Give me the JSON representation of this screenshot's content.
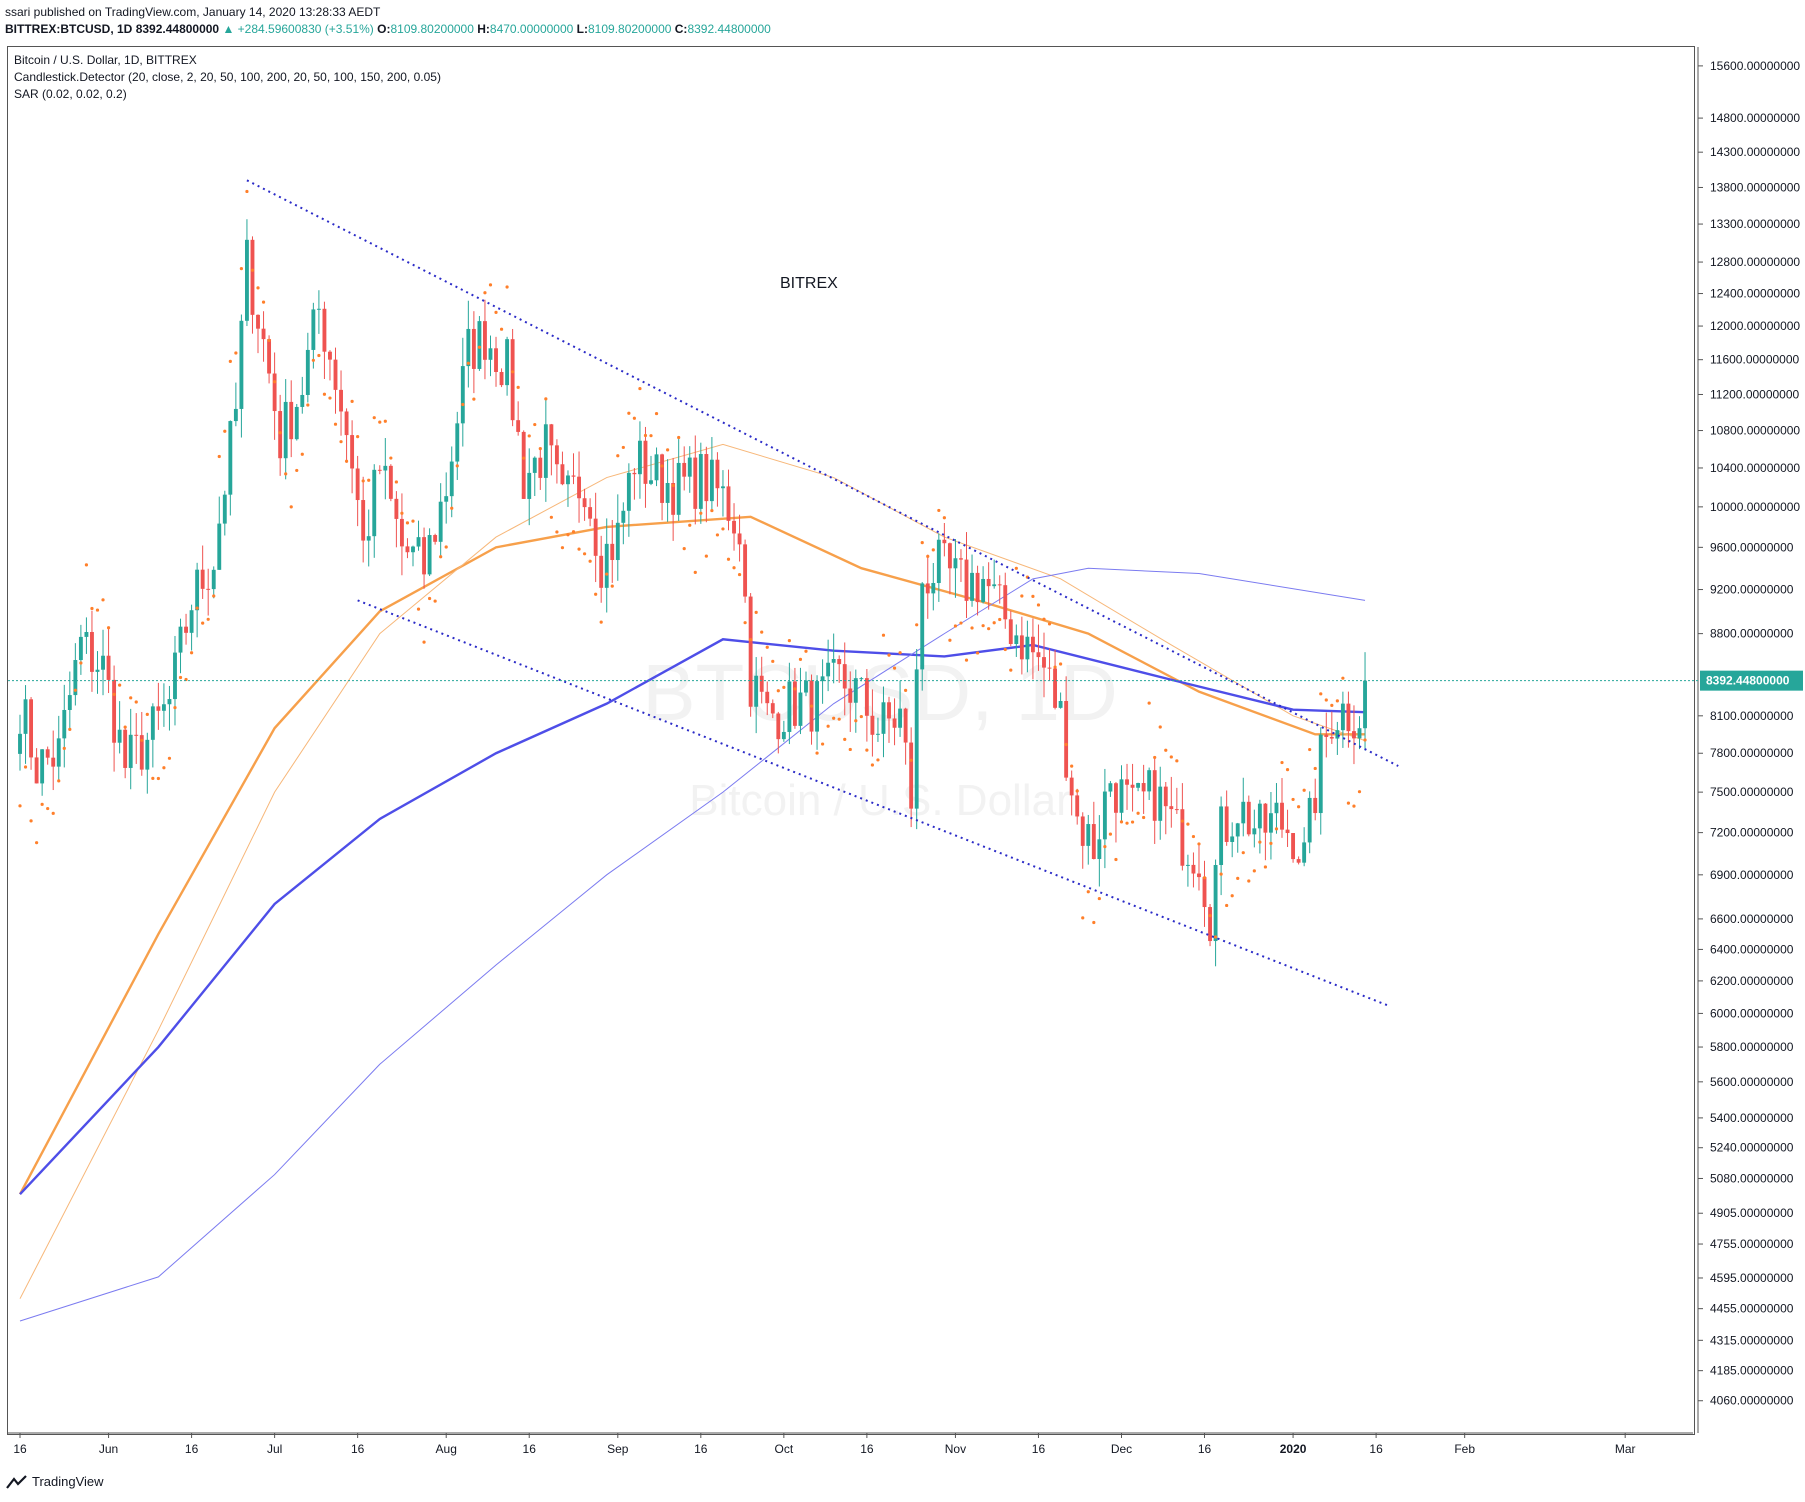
{
  "header": {
    "line1": "ssari published on TradingView.com, January 14, 2020 13:28:33 AEDT",
    "symbol": "BITTREX:BTCUSD, 1D",
    "value_price": "8392.44800000",
    "change": "▲ +284.59600830 (+3.51%)",
    "o_label": "O:",
    "o_value": "8109.80200000",
    "h_label": "H:",
    "h_value": "8470.00000000",
    "l_label": "L:",
    "l_value": "8109.80200000",
    "c_label": "C:",
    "c_value": "8392.44800000"
  },
  "legend": {
    "title": "Bitcoin / U.S. Dollar, 1D, BITTREX",
    "indicator1": "Candlestick.Detector (20, close, 2, 20, 50, 100, 200, 20, 50, 100, 150, 200, 0.05)",
    "indicator2": "SAR (0.02, 0.02, 0.2)"
  },
  "annotation": "BITREX",
  "watermark": {
    "line1": "BTCUSD, 1D",
    "line2": "Bitcoin / U.S. Dollar"
  },
  "footer": {
    "brand": "TradingView"
  },
  "colors": {
    "up": "#26a69a",
    "down": "#ef5350",
    "sar": "#ff7f2a",
    "ma_orange": "#f7a04b",
    "ma_orange_thin": "#f7b779",
    "ma_blue": "#4e4ee8",
    "ma_blue_thin": "#7b7bf0",
    "trendline": "#2b2bc7",
    "price_tag": "#26a69a"
  },
  "chart_data": {
    "type": "candlestick",
    "title": "Bitcoin / U.S. Dollar, 1D, BITTREX",
    "last_price": 8392.448,
    "last_price_label": "8392.44800000",
    "y_scale": "log",
    "ylim": [
      3930,
      15900
    ],
    "y_ticks": [
      {
        "v": 15600,
        "label": "15600.00000000"
      },
      {
        "v": 14800,
        "label": "14800.00000000"
      },
      {
        "v": 14300,
        "label": "14300.00000000"
      },
      {
        "v": 13800,
        "label": "13800.00000000"
      },
      {
        "v": 13300,
        "label": "13300.00000000"
      },
      {
        "v": 12800,
        "label": "12800.00000000"
      },
      {
        "v": 12400,
        "label": "12400.00000000"
      },
      {
        "v": 12000,
        "label": "12000.00000000"
      },
      {
        "v": 11600,
        "label": "11600.00000000"
      },
      {
        "v": 11200,
        "label": "11200.00000000"
      },
      {
        "v": 10800,
        "label": "10800.00000000"
      },
      {
        "v": 10400,
        "label": "10400.00000000"
      },
      {
        "v": 10000,
        "label": "10000.00000000"
      },
      {
        "v": 9600,
        "label": "9600.00000000"
      },
      {
        "v": 9200,
        "label": "9200.00000000"
      },
      {
        "v": 8800,
        "label": "8800.00000000"
      },
      {
        "v": 8100,
        "label": "8100.00000000"
      },
      {
        "v": 7800,
        "label": "7800.00000000"
      },
      {
        "v": 7500,
        "label": "7500.00000000"
      },
      {
        "v": 7200,
        "label": "7200.00000000"
      },
      {
        "v": 6900,
        "label": "6900.00000000"
      },
      {
        "v": 6600,
        "label": "6600.00000000"
      },
      {
        "v": 6400,
        "label": "6400.00000000"
      },
      {
        "v": 6200,
        "label": "6200.00000000"
      },
      {
        "v": 6000,
        "label": "6000.00000000"
      },
      {
        "v": 5800,
        "label": "5800.00000000"
      },
      {
        "v": 5600,
        "label": "5600.00000000"
      },
      {
        "v": 5400,
        "label": "5400.00000000"
      },
      {
        "v": 5240,
        "label": "5240.00000000"
      },
      {
        "v": 5080,
        "label": "5080.00000000"
      },
      {
        "v": 4905,
        "label": "4905.00000000"
      },
      {
        "v": 4755,
        "label": "4755.00000000"
      },
      {
        "v": 4595,
        "label": "4595.00000000"
      },
      {
        "v": 4455,
        "label": "4455.00000000"
      },
      {
        "v": 4315,
        "label": "4315.00000000"
      },
      {
        "v": 4185,
        "label": "4185.00000000"
      },
      {
        "v": 4060,
        "label": "4060.00000000"
      }
    ],
    "x_ticks": [
      {
        "date": "2019-05-16",
        "label": "16",
        "bold": false
      },
      {
        "date": "2019-06-01",
        "label": "Jun",
        "bold": false
      },
      {
        "date": "2019-06-16",
        "label": "16",
        "bold": false
      },
      {
        "date": "2019-07-01",
        "label": "Jul",
        "bold": false
      },
      {
        "date": "2019-07-16",
        "label": "16",
        "bold": false
      },
      {
        "date": "2019-08-01",
        "label": "Aug",
        "bold": false
      },
      {
        "date": "2019-08-16",
        "label": "16",
        "bold": false
      },
      {
        "date": "2019-09-01",
        "label": "Sep",
        "bold": false
      },
      {
        "date": "2019-09-16",
        "label": "16",
        "bold": false
      },
      {
        "date": "2019-10-01",
        "label": "Oct",
        "bold": false
      },
      {
        "date": "2019-10-16",
        "label": "16",
        "bold": false
      },
      {
        "date": "2019-11-01",
        "label": "Nov",
        "bold": false
      },
      {
        "date": "2019-11-16",
        "label": "16",
        "bold": false
      },
      {
        "date": "2019-12-01",
        "label": "Dec",
        "bold": false
      },
      {
        "date": "2019-12-16",
        "label": "16",
        "bold": false
      },
      {
        "date": "2020-01-01",
        "label": "2020",
        "bold": true
      },
      {
        "date": "2020-01-16",
        "label": "16",
        "bold": false
      },
      {
        "date": "2020-02-01",
        "label": "Feb",
        "bold": false
      },
      {
        "date": "2020-03-01",
        "label": "Mar",
        "bold": false
      }
    ],
    "xlim": [
      "2019-05-16",
      "2020-03-10"
    ],
    "candle_anchors": [
      [
        "2019-05-16",
        8200
      ],
      [
        "2019-05-19",
        7700
      ],
      [
        "2019-05-23",
        7800
      ],
      [
        "2019-05-27",
        8700
      ],
      [
        "2019-05-31",
        8500
      ],
      [
        "2019-06-04",
        7700
      ],
      [
        "2019-06-08",
        7900
      ],
      [
        "2019-06-12",
        8200
      ],
      [
        "2019-06-16",
        9100
      ],
      [
        "2019-06-20",
        9500
      ],
      [
        "2019-06-24",
        11000
      ],
      [
        "2019-06-26",
        12800
      ],
      [
        "2019-06-29",
        11800
      ],
      [
        "2019-07-02",
        10700
      ],
      [
        "2019-07-06",
        11300
      ],
      [
        "2019-07-09",
        12200
      ],
      [
        "2019-07-12",
        11400
      ],
      [
        "2019-07-15",
        10500
      ],
      [
        "2019-07-17",
        9600
      ],
      [
        "2019-07-20",
        10400
      ],
      [
        "2019-07-24",
        9600
      ],
      [
        "2019-07-28",
        9400
      ],
      [
        "2019-08-01",
        10200
      ],
      [
        "2019-08-05",
        11700
      ],
      [
        "2019-08-08",
        11900
      ],
      [
        "2019-08-12",
        11500
      ],
      [
        "2019-08-15",
        10300
      ],
      [
        "2019-08-19",
        10600
      ],
      [
        "2019-08-22",
        10000
      ],
      [
        "2019-08-26",
        10300
      ],
      [
        "2019-08-29",
        9500
      ],
      [
        "2019-09-01",
        9700
      ],
      [
        "2019-09-04",
        10500
      ],
      [
        "2019-09-08",
        10300
      ],
      [
        "2019-09-12",
        10200
      ],
      [
        "2019-09-16",
        10300
      ],
      [
        "2019-09-20",
        10100
      ],
      [
        "2019-09-23",
        9800
      ],
      [
        "2019-09-25",
        8400
      ],
      [
        "2019-09-28",
        8100
      ],
      [
        "2019-10-03",
        8200
      ],
      [
        "2019-10-07",
        8200
      ],
      [
        "2019-10-11",
        8400
      ],
      [
        "2019-10-14",
        8300
      ],
      [
        "2019-10-18",
        8000
      ],
      [
        "2019-10-22",
        8100
      ],
      [
        "2019-10-24",
        7450
      ],
      [
        "2019-10-26",
        9300
      ],
      [
        "2019-10-29",
        9400
      ],
      [
        "2019-11-02",
        9250
      ],
      [
        "2019-11-06",
        9300
      ],
      [
        "2019-11-09",
        9000
      ],
      [
        "2019-11-13",
        8750
      ],
      [
        "2019-11-17",
        8500
      ],
      [
        "2019-11-20",
        8100
      ],
      [
        "2019-11-23",
        7300
      ],
      [
        "2019-11-26",
        7100
      ],
      [
        "2019-11-29",
        7600
      ],
      [
        "2019-12-03",
        7350
      ],
      [
        "2019-12-07",
        7500
      ],
      [
        "2019-12-11",
        7200
      ],
      [
        "2019-12-15",
        7050
      ],
      [
        "2019-12-17",
        6650
      ],
      [
        "2019-12-19",
        7200
      ],
      [
        "2019-12-22",
        7400
      ],
      [
        "2019-12-26",
        7200
      ],
      [
        "2019-12-29",
        7300
      ],
      [
        "2020-01-01",
        7200
      ],
      [
        "2020-01-03",
        7000
      ],
      [
        "2020-01-06",
        7750
      ],
      [
        "2020-01-08",
        8100
      ],
      [
        "2020-01-10",
        8150
      ],
      [
        "2020-01-13",
        8110
      ],
      [
        "2020-01-14",
        8392
      ]
    ],
    "sar_dots_note": "Parabolic SAR dots plotted above/below price",
    "moving_averages": [
      {
        "name": "MA 50 (orange)",
        "color": "#f7a04b",
        "points": [
          [
            "2019-05-16",
            5000
          ],
          [
            "2019-06-10",
            6500
          ],
          [
            "2019-07-01",
            8000
          ],
          [
            "2019-07-20",
            9000
          ],
          [
            "2019-08-10",
            9600
          ],
          [
            "2019-08-30",
            9800
          ],
          [
            "2019-09-25",
            9900
          ],
          [
            "2019-10-15",
            9400
          ],
          [
            "2019-11-05",
            9100
          ],
          [
            "2019-11-25",
            8800
          ],
          [
            "2019-12-15",
            8300
          ],
          [
            "2020-01-05",
            7950
          ],
          [
            "2020-01-14",
            7950
          ]
        ]
      },
      {
        "name": "MA 20 (thin orange)",
        "color": "#f7b779",
        "points": [
          [
            "2019-05-16",
            4500
          ],
          [
            "2019-06-10",
            5900
          ],
          [
            "2019-07-01",
            7500
          ],
          [
            "2019-07-20",
            8800
          ],
          [
            "2019-08-10",
            9700
          ],
          [
            "2019-08-30",
            10300
          ],
          [
            "2019-09-20",
            10650
          ],
          [
            "2019-10-10",
            10300
          ],
          [
            "2019-10-30",
            9700
          ],
          [
            "2019-11-20",
            9300
          ],
          [
            "2019-12-10",
            8700
          ],
          [
            "2020-01-01",
            8100
          ],
          [
            "2020-01-14",
            7900
          ]
        ]
      },
      {
        "name": "MA 100 (blue)",
        "color": "#4e4ee8",
        "points": [
          [
            "2019-05-16",
            5000
          ],
          [
            "2019-06-10",
            5800
          ],
          [
            "2019-07-01",
            6700
          ],
          [
            "2019-07-20",
            7300
          ],
          [
            "2019-08-10",
            7800
          ],
          [
            "2019-08-30",
            8200
          ],
          [
            "2019-09-20",
            8750
          ],
          [
            "2019-10-10",
            8650
          ],
          [
            "2019-10-30",
            8600
          ],
          [
            "2019-11-15",
            8700
          ],
          [
            "2019-12-10",
            8400
          ],
          [
            "2020-01-01",
            8150
          ],
          [
            "2020-01-14",
            8130
          ]
        ]
      },
      {
        "name": "MA 200 (thin blue)",
        "color": "#7b7bf0",
        "points": [
          [
            "2019-05-16",
            4400
          ],
          [
            "2019-06-10",
            4600
          ],
          [
            "2019-07-01",
            5100
          ],
          [
            "2019-07-20",
            5700
          ],
          [
            "2019-08-10",
            6300
          ],
          [
            "2019-08-30",
            6900
          ],
          [
            "2019-09-20",
            7500
          ],
          [
            "2019-10-10",
            8200
          ],
          [
            "2019-10-30",
            8800
          ],
          [
            "2019-11-15",
            9300
          ],
          [
            "2019-11-25",
            9400
          ],
          [
            "2019-12-15",
            9350
          ],
          [
            "2020-01-14",
            9100
          ]
        ]
      }
    ],
    "trendlines": [
      {
        "name": "upper channel",
        "from": [
          "2019-06-26",
          13900
        ],
        "to": [
          "2020-01-20",
          7700
        ]
      },
      {
        "name": "lower channel",
        "from": [
          "2019-07-16",
          9100
        ],
        "to": [
          "2020-01-18",
          6050
        ]
      }
    ]
  }
}
